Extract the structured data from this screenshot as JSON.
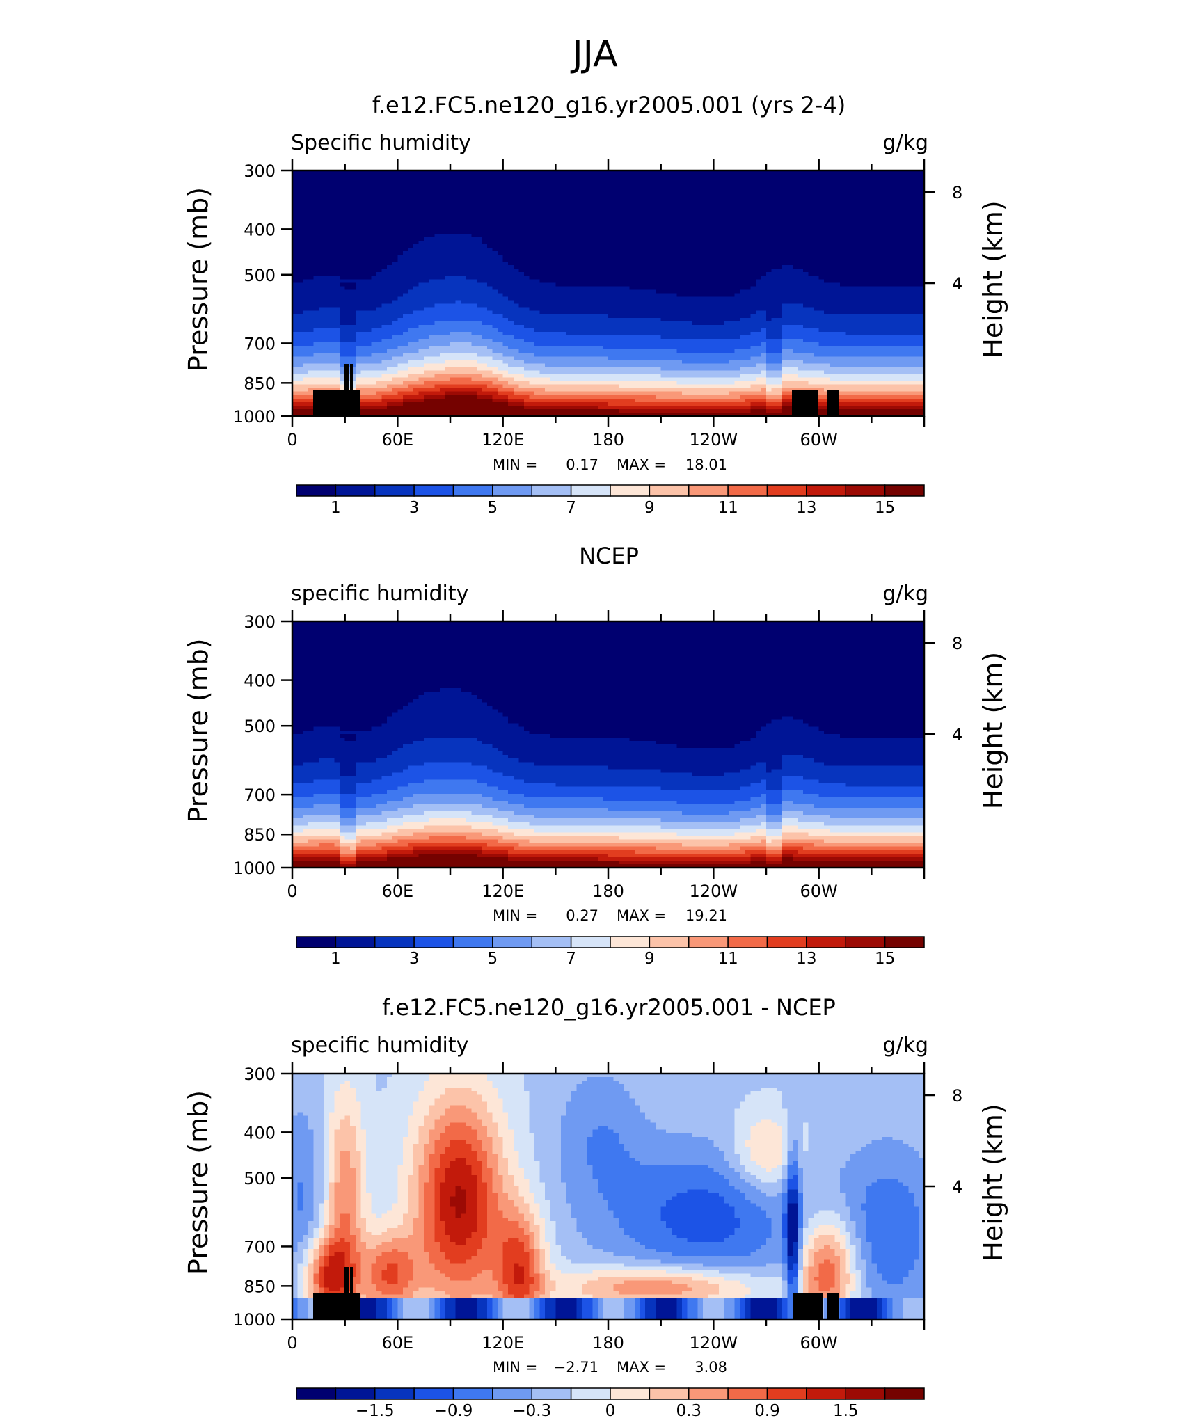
{
  "page": {
    "title": "JJA"
  },
  "chart_data": [
    {
      "type": "heatmap",
      "title": "f.e12.FC5.ne120_g16.yr2005.001 (yrs 2-4)",
      "left_label": "Specific humidity",
      "right_label": "g/kg",
      "ylabel": "Pressure (mb)",
      "ylabel_right": "Height (km)",
      "y_ticks": [
        "300",
        "400",
        "500",
        "700",
        "850",
        "1000"
      ],
      "y_ticks_right": [
        "8",
        "4"
      ],
      "x_ticks": [
        "0",
        "60E",
        "120E",
        "180",
        "120W",
        "60W"
      ],
      "stats": {
        "min_label": "MIN =",
        "min": "0.17",
        "max_label": "MAX =",
        "max": "18.01"
      },
      "colorbar": {
        "labels": [
          "1",
          "3",
          "5",
          "7",
          "9",
          "11",
          "13",
          "15"
        ]
      },
      "ylim": [
        1000,
        300
      ],
      "xlim": [
        0,
        360
      ],
      "mode": "abs",
      "masked": true
    },
    {
      "type": "heatmap",
      "title": "NCEP",
      "left_label": "specific humidity",
      "right_label": "g/kg",
      "ylabel": "Pressure (mb)",
      "ylabel_right": "Height (km)",
      "y_ticks": [
        "300",
        "400",
        "500",
        "700",
        "850",
        "1000"
      ],
      "y_ticks_right": [
        "8",
        "4"
      ],
      "x_ticks": [
        "0",
        "60E",
        "120E",
        "180",
        "120W",
        "60W"
      ],
      "stats": {
        "min_label": "MIN =",
        "min": "0.27",
        "max_label": "MAX =",
        "max": "19.21"
      },
      "colorbar": {
        "labels": [
          "1",
          "3",
          "5",
          "7",
          "9",
          "11",
          "13",
          "15"
        ]
      },
      "ylim": [
        1000,
        300
      ],
      "xlim": [
        0,
        360
      ],
      "mode": "abs",
      "masked": false
    },
    {
      "type": "heatmap",
      "title": "f.e12.FC5.ne120_g16.yr2005.001 - NCEP",
      "left_label": "specific humidity",
      "right_label": "g/kg",
      "ylabel": "Pressure (mb)",
      "ylabel_right": "Height (km)",
      "y_ticks": [
        "300",
        "400",
        "500",
        "700",
        "850",
        "1000"
      ],
      "y_ticks_right": [
        "8",
        "4"
      ],
      "x_ticks": [
        "0",
        "60E",
        "120E",
        "180",
        "120W",
        "60W"
      ],
      "stats": {
        "min_label": "MIN =",
        "min": "−2.71",
        "max_label": "MAX =",
        "max": "3.08"
      },
      "colorbar": {
        "labels": [
          "−1.5",
          "−0.9",
          "−0.3",
          "0",
          "0.3",
          "0.9",
          "1.5"
        ]
      },
      "ylim": [
        1000,
        300
      ],
      "xlim": [
        0,
        360
      ],
      "mode": "diff",
      "masked": true
    }
  ],
  "palette": [
    "#000070",
    "#001596",
    "#0734be",
    "#1c53e6",
    "#3f78f0",
    "#6f9af2",
    "#a4bff5",
    "#d6e4f8",
    "#fde6d7",
    "#fcc3a9",
    "#f99878",
    "#f26a48",
    "#e23d1f",
    "#c21a0b",
    "#9c0a04",
    "#750200"
  ]
}
